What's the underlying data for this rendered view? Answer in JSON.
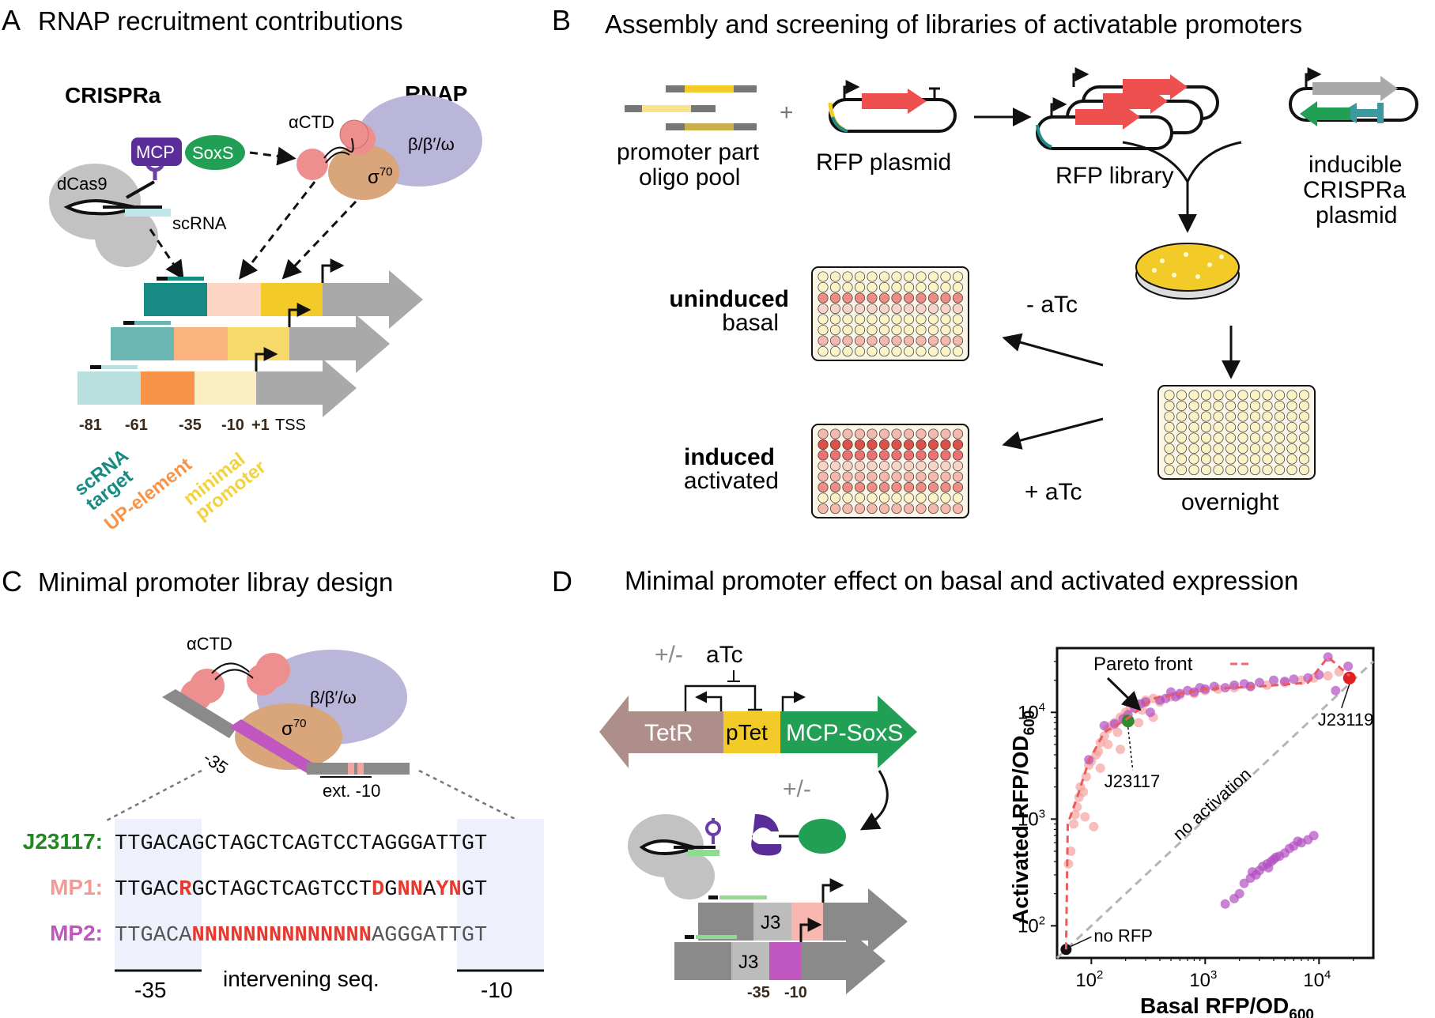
{
  "panels": {
    "A": {
      "letter": "A",
      "title": "RNAP recruitment contributions",
      "crispra": "CRISPRa",
      "rnap": "RNAP",
      "mcp": "MCP",
      "soxs": "SoxS",
      "actd": "αCTD",
      "beta": "β/β′/ω",
      "sigma": "σ",
      "sigma_sup": "70",
      "dcas9": "dCas9",
      "scrna": "scRNA",
      "positions": [
        "-81",
        "-61",
        "-35",
        "-10",
        "+1"
      ],
      "tss": "TSS",
      "legend": [
        {
          "lines": [
            "scRNA",
            "target"
          ],
          "color": "#168a83"
        },
        {
          "lines": [
            "UP-element"
          ],
          "color": "#f7944a"
        },
        {
          "lines": [
            "minimal",
            "promoter"
          ],
          "color": "#f3d23d"
        }
      ]
    },
    "B": {
      "letter": "B",
      "title": "Assembly and screening of libraries of activatable promoters",
      "oligo_pool": [
        "promoter part",
        "oligo pool"
      ],
      "plus": "+",
      "rfp_plasmid": "RFP plasmid",
      "rfp_library": "RFP library",
      "crispra_plasmid": [
        "inducible",
        "CRISPRa",
        "plasmid"
      ],
      "uninduced": [
        "uninduced",
        "basal"
      ],
      "induced": [
        "induced",
        "activated"
      ],
      "minus_atc": "- aTc",
      "plus_atc": "+ aTc",
      "overnight": "overnight"
    },
    "C": {
      "letter": "C",
      "title": "Minimal promoter libray design",
      "actd": "αCTD",
      "beta": "β/β′/ω",
      "sigma": "σ",
      "sigma_sup": "70",
      "m35": "-35",
      "ext10": "ext. -10",
      "seqs": [
        {
          "name": "J23117:",
          "color": "#1e8a1e",
          "seq": "TTGACAGCTAGCTCAGTCCTAGGGATTGT"
        },
        {
          "name": "MP1:",
          "color": "#f39a96",
          "seq": "TTGACRGCTAGCTCAGTCCTDGNNAYNGT"
        },
        {
          "name": "MP2:",
          "color": "#c056c0",
          "seq": "TTGACANNNNNNNNNNNNNNAGGGATTGT"
        }
      ],
      "bottom_labels": [
        "-35",
        "intervening seq.",
        "-10"
      ]
    },
    "D": {
      "letter": "D",
      "title": "Minimal promoter effect on basal and activated expression",
      "pm_atc": "+/-",
      "atc": "aTc",
      "tetr": "TetR",
      "ptet": "pTet",
      "mcp_soxs": "MCP-SoxS",
      "pm": "+/-",
      "j3": "J3",
      "m35": "-35",
      "m10": "-10"
    }
  },
  "chart_data": {
    "type": "scatter",
    "xlabel": "Basal RFP/OD",
    "xlabel_sub": "600",
    "ylabel": "Activated RFP/OD",
    "ylabel_sub": "600",
    "xscale": "log",
    "yscale": "log",
    "xlim": [
      50,
      30000
    ],
    "ylim": [
      50,
      40000
    ],
    "ticks": [
      {
        "base": "10",
        "exp": "2",
        "value": 100
      },
      {
        "base": "10",
        "exp": "3",
        "value": 1000
      },
      {
        "base": "10",
        "exp": "4",
        "value": 10000
      }
    ],
    "series": [
      {
        "name": "MP1",
        "color": "#f4a3a0",
        "points": [
          [
            63,
            380
          ],
          [
            66,
            500
          ],
          [
            70,
            900
          ],
          [
            72,
            1100
          ],
          [
            75,
            1300
          ],
          [
            78,
            1600
          ],
          [
            80,
            2000
          ],
          [
            85,
            1800
          ],
          [
            88,
            1050
          ],
          [
            90,
            2500
          ],
          [
            95,
            3200
          ],
          [
            100,
            3500
          ],
          [
            105,
            850
          ],
          [
            110,
            4000
          ],
          [
            115,
            4300
          ],
          [
            120,
            5200
          ],
          [
            130,
            6000
          ],
          [
            140,
            7000
          ],
          [
            150,
            7500
          ],
          [
            160,
            8000
          ],
          [
            170,
            6500
          ],
          [
            180,
            9000
          ],
          [
            200,
            10000
          ],
          [
            220,
            11000
          ],
          [
            250,
            12000
          ],
          [
            280,
            10500
          ],
          [
            300,
            13000
          ],
          [
            350,
            13500
          ],
          [
            400,
            12500
          ],
          [
            500,
            14000
          ],
          [
            600,
            14500
          ],
          [
            800,
            15000
          ],
          [
            1000,
            16000
          ],
          [
            1300,
            16500
          ],
          [
            1800,
            17000
          ],
          [
            2500,
            17500
          ],
          [
            3500,
            18000
          ],
          [
            5000,
            19000
          ],
          [
            7000,
            20000
          ],
          [
            9000,
            21000
          ],
          [
            12000,
            22000
          ],
          [
            15000,
            24000
          ],
          [
            140,
            5000
          ],
          [
            180,
            4500
          ],
          [
            260,
            8000
          ],
          [
            350,
            9000
          ],
          [
            120,
            3000
          ]
        ]
      },
      {
        "name": "MP2",
        "color": "#b04fc0",
        "points": [
          [
            95,
            3600
          ],
          [
            130,
            7500
          ],
          [
            160,
            7800
          ],
          [
            190,
            8700
          ],
          [
            210,
            9500
          ],
          [
            240,
            11000
          ],
          [
            270,
            12000
          ],
          [
            300,
            12500
          ],
          [
            330,
            10000
          ],
          [
            400,
            13000
          ],
          [
            450,
            13500
          ],
          [
            500,
            15500
          ],
          [
            550,
            14000
          ],
          [
            600,
            15000
          ],
          [
            700,
            16000
          ],
          [
            800,
            15500
          ],
          [
            900,
            17000
          ],
          [
            1000,
            16500
          ],
          [
            1200,
            17500
          ],
          [
            1500,
            17000
          ],
          [
            1800,
            18000
          ],
          [
            2200,
            18500
          ],
          [
            2500,
            17500
          ],
          [
            3000,
            19000
          ],
          [
            4000,
            20000
          ],
          [
            5000,
            19500
          ],
          [
            6000,
            20500
          ],
          [
            8000,
            21000
          ],
          [
            10000,
            22500
          ],
          [
            12000,
            33000
          ],
          [
            14000,
            16000
          ],
          [
            18000,
            27000
          ],
          [
            2000,
            200
          ],
          [
            2200,
            250
          ],
          [
            2500,
            280
          ],
          [
            2800,
            300
          ],
          [
            3000,
            330
          ],
          [
            3200,
            360
          ],
          [
            3500,
            380
          ],
          [
            3800,
            400
          ],
          [
            4000,
            420
          ],
          [
            4500,
            450
          ],
          [
            5000,
            480
          ],
          [
            5500,
            530
          ],
          [
            6000,
            560
          ],
          [
            7000,
            600
          ],
          [
            8000,
            640
          ],
          [
            1800,
            180
          ],
          [
            1500,
            160
          ],
          [
            3600,
            350
          ],
          [
            4200,
            440
          ],
          [
            6500,
            620
          ],
          [
            9000,
            700
          ],
          [
            2600,
            320
          ]
        ]
      }
    ],
    "highlights": [
      {
        "name": "J23117",
        "x": 210,
        "y": 8300,
        "color": "#2e8b2e"
      },
      {
        "name": "J23119",
        "x": 18500,
        "y": 21000,
        "color": "#e02020"
      },
      {
        "name": "no RFP",
        "x": 60,
        "y": 60,
        "color": "#111111"
      }
    ],
    "pareto_label": "Pareto front",
    "pareto_front": [
      [
        60,
        60
      ],
      [
        62,
        900
      ],
      [
        75,
        1600
      ],
      [
        95,
        3500
      ],
      [
        130,
        6500
      ],
      [
        200,
        8500
      ],
      [
        350,
        13500
      ],
      [
        1000,
        16500
      ],
      [
        3000,
        17500
      ],
      [
        8000,
        19000
      ],
      [
        12000,
        33000
      ],
      [
        18500,
        22000
      ]
    ],
    "diagonal_label": "no activation"
  }
}
